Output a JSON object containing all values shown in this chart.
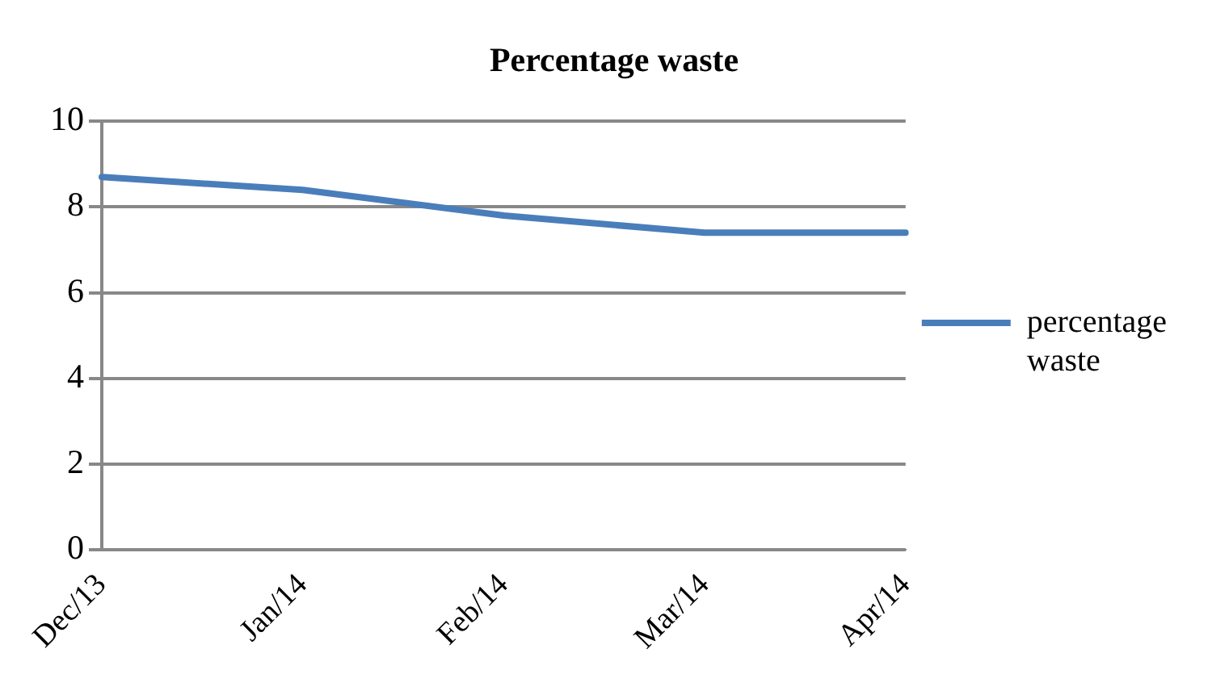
{
  "chart_data": {
    "type": "line",
    "title": "Percentage waste",
    "categories": [
      "Dec/13",
      "Jan/14",
      "Feb/14",
      "Mar/14",
      "Apr/14"
    ],
    "series": [
      {
        "name": "percentage waste",
        "color": "#4a7ebb",
        "values": [
          8.7,
          8.4,
          7.8,
          7.4,
          7.4
        ]
      }
    ],
    "ylim": [
      0,
      10
    ],
    "yticks": [
      0,
      2,
      4,
      6,
      8,
      10
    ],
    "grid": "y",
    "legend": "right",
    "marker": "none"
  }
}
